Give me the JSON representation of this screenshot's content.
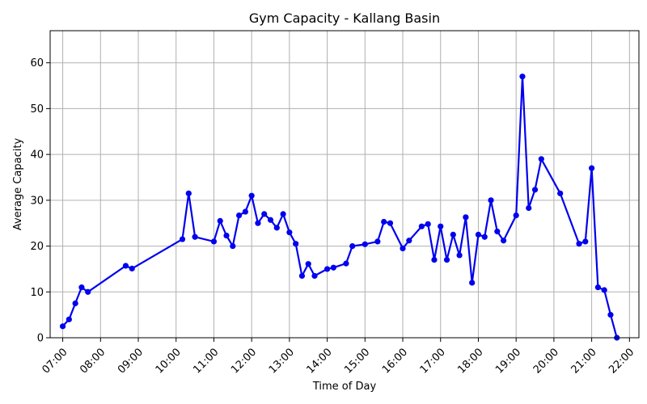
{
  "chart_data": {
    "type": "line",
    "title": "Gym Capacity - Kallang Basin",
    "xlabel": "Time of Day",
    "ylabel": "Average Capacity",
    "xlim": [
      "06:40",
      "22:15"
    ],
    "ylim": [
      0,
      67
    ],
    "grid": true,
    "line_color": "#0000ee",
    "x_ticks": [
      "07:00",
      "08:00",
      "09:00",
      "10:00",
      "11:00",
      "12:00",
      "13:00",
      "14:00",
      "15:00",
      "16:00",
      "17:00",
      "18:00",
      "19:00",
      "20:00",
      "21:00",
      "22:00"
    ],
    "y_ticks": [
      0,
      10,
      20,
      30,
      40,
      50,
      60
    ],
    "series": [
      {
        "x": [
          "07:00",
          "07:10",
          "07:20",
          "07:30",
          "07:40",
          "08:40",
          "08:50",
          "10:10",
          "10:20",
          "10:30",
          "11:00",
          "11:10",
          "11:20",
          "11:30",
          "11:40",
          "11:50",
          "12:00",
          "12:10",
          "12:20",
          "12:30",
          "12:40",
          "12:50",
          "13:00",
          "13:10",
          "13:20",
          "13:30",
          "13:40",
          "14:00",
          "14:10",
          "14:30",
          "14:40",
          "15:00",
          "15:20",
          "15:30",
          "15:40",
          "16:00",
          "16:10",
          "16:30",
          "16:40",
          "16:50",
          "17:00",
          "17:10",
          "17:20",
          "17:30",
          "17:40",
          "17:50",
          "18:00",
          "18:10",
          "18:20",
          "18:30",
          "18:40",
          "19:00",
          "19:10",
          "19:20",
          "19:30",
          "19:40",
          "20:10",
          "20:40",
          "20:50",
          "21:00",
          "21:10",
          "21:20",
          "21:30",
          "21:40"
        ],
        "y": [
          2.5,
          4.0,
          7.5,
          11.0,
          10.0,
          15.7,
          15.1,
          21.5,
          31.5,
          22.0,
          21.0,
          25.5,
          22.3,
          20.0,
          26.7,
          27.5,
          31.0,
          25.0,
          27.0,
          25.7,
          24.0,
          27.0,
          23.0,
          20.5,
          13.5,
          16.1,
          13.5,
          15.0,
          15.3,
          16.2,
          20.0,
          20.4,
          21.0,
          25.3,
          25.0,
          19.5,
          21.2,
          24.3,
          24.8,
          17.0,
          24.3,
          17.0,
          22.5,
          18.0,
          26.3,
          12.0,
          22.5,
          22.0,
          30.0,
          23.2,
          21.2,
          26.7,
          57.0,
          28.3,
          32.3,
          39.0,
          31.5,
          20.5,
          21.0,
          37.0,
          11.0,
          10.4,
          5.0,
          0.0
        ]
      }
    ]
  }
}
